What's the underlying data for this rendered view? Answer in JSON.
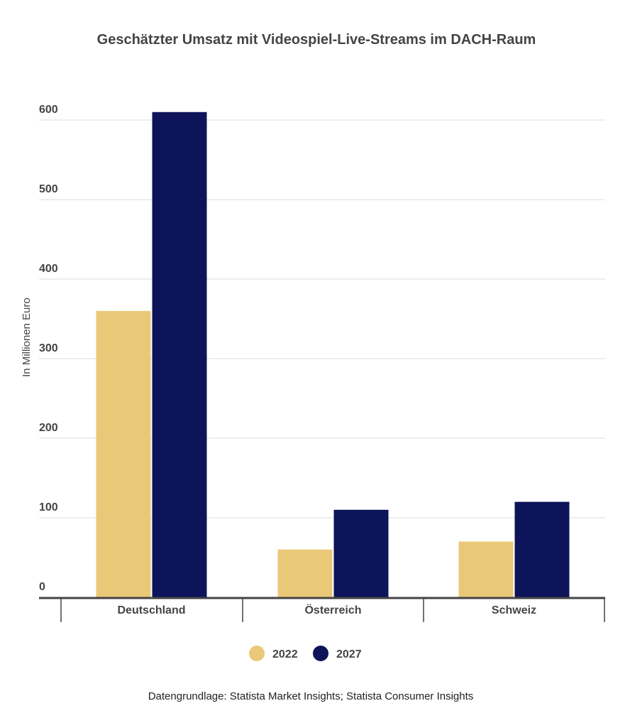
{
  "chart_data": {
    "type": "bar",
    "title": "Geschätzter Umsatz mit Videospiel-Live-Streams im DACH-Raum",
    "xlabel": "",
    "ylabel": "In Millionen Euro",
    "ylim": [
      0,
      600
    ],
    "yticks": [
      "0",
      "100",
      "200",
      "300",
      "400",
      "500",
      "600"
    ],
    "grid": true,
    "categories": [
      "Deutschland",
      "Österreich",
      "Schweiz"
    ],
    "series": [
      {
        "name": "2022",
        "color": "#E9C978",
        "values": [
          360,
          60,
          70
        ]
      },
      {
        "name": "2027",
        "color": "#0D1459",
        "values": [
          610,
          110,
          120
        ]
      }
    ],
    "legend_position": "bottom",
    "source": "Datengrundlage: Statista Market Insights; Statista Consumer Insights"
  }
}
